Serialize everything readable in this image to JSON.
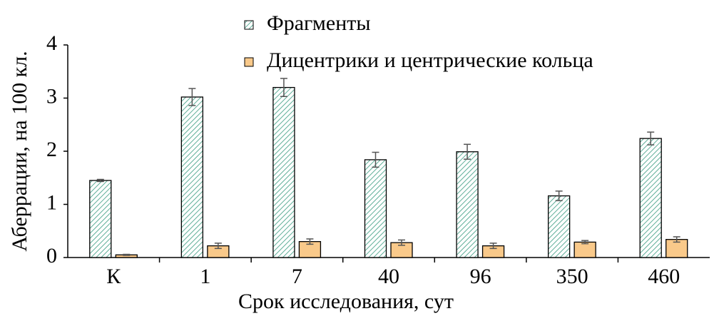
{
  "chart_data": {
    "type": "bar",
    "ylabel": "Аберрации, на 100 кл.",
    "xlabel": "Срок исследования, сут",
    "categories": [
      "К",
      "1",
      "7",
      "40",
      "96",
      "350",
      "460"
    ],
    "series": [
      {
        "name": "Фрагменты",
        "color": "#5fae98",
        "pattern": "hatch",
        "values": [
          1.45,
          3.02,
          3.2,
          1.84,
          1.99,
          1.16,
          2.24
        ],
        "errors": [
          0.02,
          0.16,
          0.17,
          0.14,
          0.14,
          0.09,
          0.12
        ]
      },
      {
        "name": "Дицентрики и центрические кольца",
        "color": "#f9c98a",
        "values": [
          0.05,
          0.22,
          0.3,
          0.28,
          0.22,
          0.29,
          0.34
        ],
        "errors": [
          0.01,
          0.05,
          0.05,
          0.05,
          0.05,
          0.03,
          0.05
        ]
      }
    ],
    "ylim": [
      0,
      4
    ],
    "yticks": [
      0,
      1,
      2,
      3,
      4
    ],
    "grid": false,
    "legend": "top"
  }
}
